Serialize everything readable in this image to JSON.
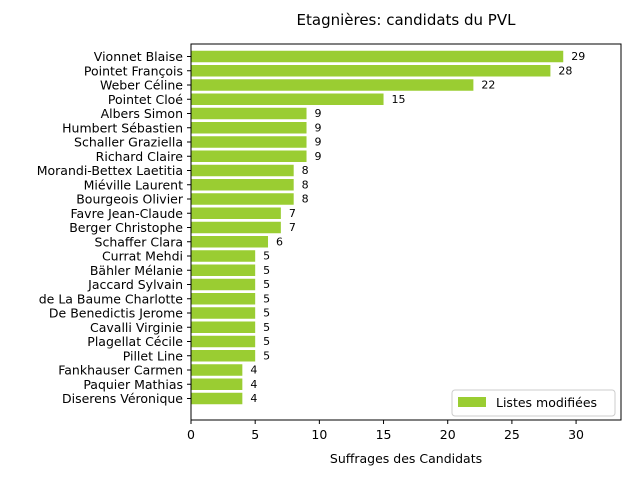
{
  "chart_data": {
    "type": "bar",
    "orientation": "horizontal",
    "title": "Etagnières: candidats du PVL",
    "xlabel": "Suffrages des Candidats",
    "ylabel": "",
    "xlim": [
      0,
      33.5
    ],
    "xticks": [
      0,
      5,
      10,
      15,
      20,
      25,
      30
    ],
    "grid": false,
    "legend_position": "lower-right",
    "color": "#9acd32",
    "categories": [
      "Vionnet Blaise",
      "Pointet François",
      "Weber Céline",
      "Pointet Cloé",
      "Albers Simon",
      "Humbert Sébastien",
      "Schaller Graziella",
      "Richard Claire",
      "Morandi-Bettex Laetitia",
      "Miéville Laurent",
      "Bourgeois Olivier",
      "Favre Jean-Claude",
      "Berger Christophe",
      "Schaffer Clara",
      "Currat Mehdi",
      "Bähler Mélanie",
      "Jaccard Sylvain",
      "de La Baume Charlotte",
      "De Benedictis Jerome",
      "Cavalli Virginie",
      "Plagellat Cécile",
      "Pillet Line",
      "Fankhauser Carmen",
      "Paquier Mathias",
      "Diserens Véronique"
    ],
    "series": [
      {
        "name": "Listes modifiées",
        "values": [
          29,
          28,
          22,
          15,
          9,
          9,
          9,
          9,
          8,
          8,
          8,
          7,
          7,
          6,
          5,
          5,
          5,
          5,
          5,
          5,
          5,
          5,
          4,
          4,
          4
        ]
      }
    ]
  }
}
